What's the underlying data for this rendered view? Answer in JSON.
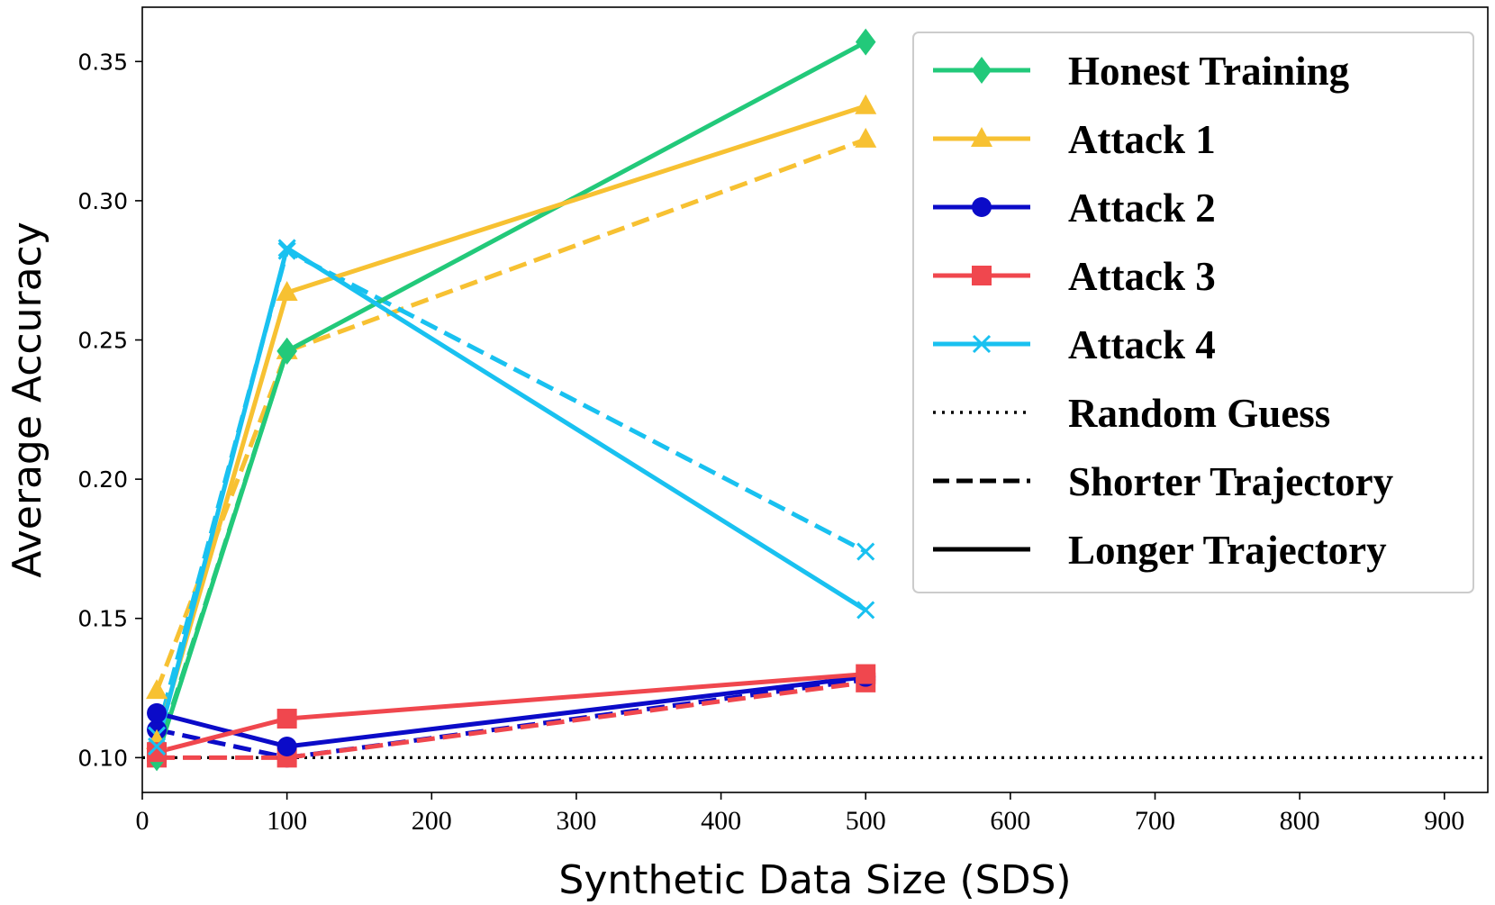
{
  "chart_data": {
    "type": "line",
    "title": "",
    "xlabel": "Synthetic Data Size (SDS)",
    "ylabel": "Average Accuracy",
    "xlim": [
      0,
      930
    ],
    "ylim": [
      0.0875,
      0.3695
    ],
    "xticks": [
      0,
      100,
      200,
      300,
      400,
      500,
      600,
      700,
      800,
      900
    ],
    "xtick_labels": [
      "0",
      "100",
      "200",
      "300",
      "400",
      "500",
      "600",
      "700",
      "800",
      "900"
    ],
    "yticks": [
      0.1,
      0.15,
      0.2,
      0.25,
      0.3,
      0.35
    ],
    "ytick_labels": [
      "0.10",
      "0.15",
      "0.20",
      "0.25",
      "0.30",
      "0.35"
    ],
    "grid": false,
    "legend_position": "top-right",
    "series": [
      {
        "name": "Honest Training",
        "trajectory": "longer",
        "color": "#22c97a",
        "marker": "diamond",
        "x": [
          10,
          100,
          500
        ],
        "y": [
          0.1,
          0.246,
          0.357
        ]
      },
      {
        "name": "Honest Training",
        "trajectory": "shorter",
        "color": "#22c97a",
        "marker": "diamond",
        "x": [
          10,
          100
        ],
        "y": [
          0.101,
          0.246
        ]
      },
      {
        "name": "Attack 1",
        "trajectory": "longer",
        "color": "#f7c132",
        "marker": "triangle",
        "x": [
          10,
          100,
          500
        ],
        "y": [
          0.106,
          0.267,
          0.334
        ]
      },
      {
        "name": "Attack 1",
        "trajectory": "shorter",
        "color": "#f7c132",
        "marker": "triangle",
        "x": [
          10,
          100,
          500
        ],
        "y": [
          0.124,
          0.246,
          0.322
        ]
      },
      {
        "name": "Attack 2",
        "trajectory": "longer",
        "color": "#0b0bc8",
        "marker": "circle",
        "x": [
          10,
          100,
          500
        ],
        "y": [
          0.116,
          0.104,
          0.129
        ]
      },
      {
        "name": "Attack 2",
        "trajectory": "shorter",
        "color": "#0b0bc8",
        "marker": "circle",
        "x": [
          10,
          100,
          500
        ],
        "y": [
          0.11,
          0.1,
          0.128
        ]
      },
      {
        "name": "Attack 3",
        "trajectory": "longer",
        "color": "#f0474e",
        "marker": "square",
        "x": [
          10,
          100,
          500
        ],
        "y": [
          0.102,
          0.114,
          0.13
        ]
      },
      {
        "name": "Attack 3",
        "trajectory": "shorter",
        "color": "#f0474e",
        "marker": "square",
        "x": [
          10,
          100,
          500
        ],
        "y": [
          0.1,
          0.1,
          0.127
        ]
      },
      {
        "name": "Attack 4",
        "trajectory": "longer",
        "color": "#19c1f0",
        "marker": "x",
        "x": [
          10,
          100,
          500
        ],
        "y": [
          0.104,
          0.283,
          0.153
        ]
      },
      {
        "name": "Attack 4",
        "trajectory": "shorter",
        "color": "#19c1f0",
        "marker": "x",
        "x": [
          10,
          100,
          500
        ],
        "y": [
          0.108,
          0.282,
          0.174
        ]
      }
    ],
    "reference_lines": [
      {
        "name": "Random Guess",
        "y": 0.1,
        "style": "dotted",
        "color": "#000000"
      }
    ],
    "legend": [
      {
        "label": "Honest Training",
        "color": "#22c97a",
        "marker": "diamond",
        "style": "solid"
      },
      {
        "label": "Attack 1",
        "color": "#f7c132",
        "marker": "triangle",
        "style": "solid"
      },
      {
        "label": "Attack 2",
        "color": "#0b0bc8",
        "marker": "circle",
        "style": "solid"
      },
      {
        "label": "Attack 3",
        "color": "#f0474e",
        "marker": "square",
        "style": "solid"
      },
      {
        "label": "Attack 4",
        "color": "#19c1f0",
        "marker": "x",
        "style": "solid"
      },
      {
        "label": "Random Guess",
        "color": "#000000",
        "marker": "none",
        "style": "dotted"
      },
      {
        "label": "Shorter Trajectory",
        "color": "#000000",
        "marker": "none",
        "style": "dashed"
      },
      {
        "label": "Longer Trajectory",
        "color": "#000000",
        "marker": "none",
        "style": "solid"
      }
    ]
  }
}
